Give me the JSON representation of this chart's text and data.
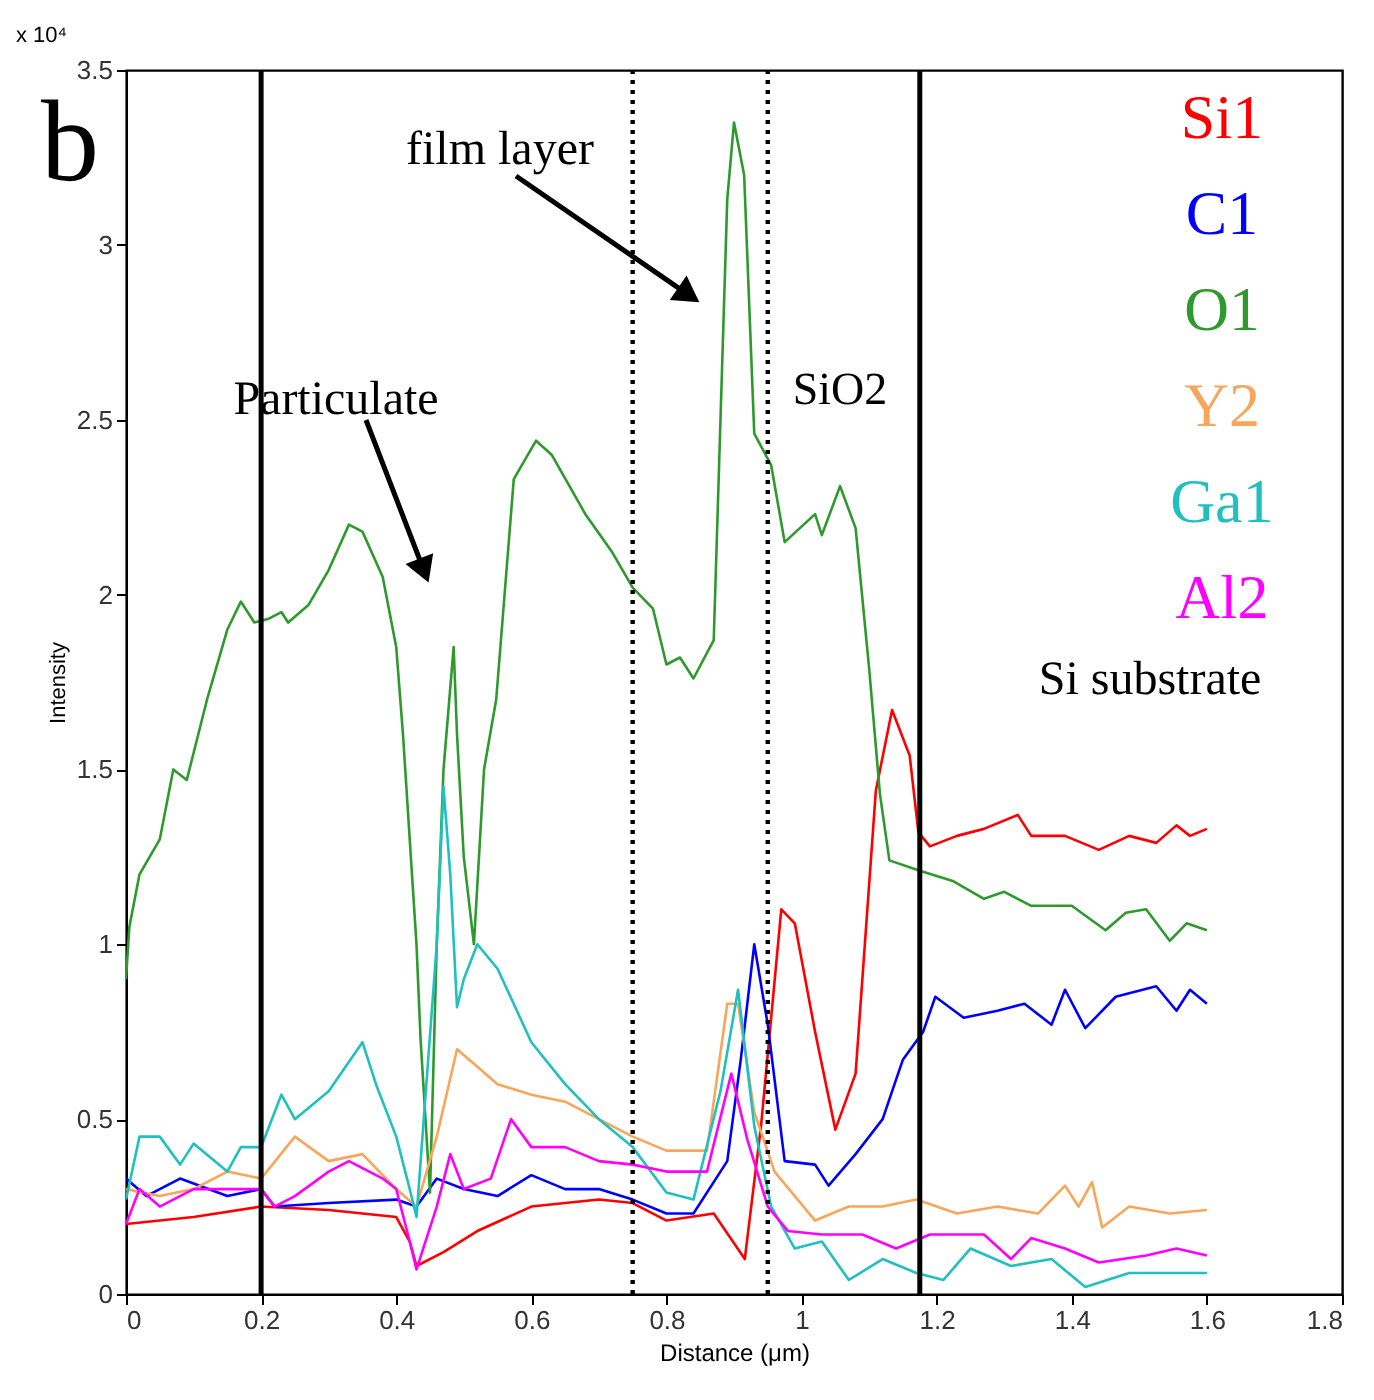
{
  "chart_data": {
    "type": "line",
    "xlabel": "Distance (μm)",
    "ylabel": "Intensity",
    "xlim": [
      0,
      1.8
    ],
    "xticks": [
      0,
      0.2,
      0.4,
      0.6,
      0.8,
      1,
      1.2,
      1.4,
      1.6,
      1.8
    ],
    "ylim": [
      0,
      3.5
    ],
    "yticks": [
      0,
      0.5,
      1,
      1.5,
      2,
      2.5,
      3,
      3.5
    ],
    "grid": false,
    "legend": "top right",
    "annotations": [
      "x 10⁴",
      "b",
      "film layer",
      "Particulate",
      "SiO2",
      "Si substrate"
    ],
    "ref_lines": [
      {
        "axis": "x",
        "value": 0.2,
        "line_style": "solid",
        "color": "#000000"
      },
      {
        "axis": "x",
        "value": 0.75,
        "line_style": "dotted",
        "color": "#000000"
      },
      {
        "axis": "x",
        "value": 0.95,
        "line_style": "dotted",
        "color": "#000000"
      },
      {
        "axis": "x",
        "value": 1.175,
        "line_style": "solid",
        "color": "#000000"
      }
    ],
    "series": [
      {
        "name": "Si1",
        "color": "#ff0000",
        "x": [
          0,
          0.1,
          0.2,
          0.3,
          0.4,
          0.42,
          0.43,
          0.47,
          0.52,
          0.6,
          0.7,
          0.75,
          0.8,
          0.87,
          0.916,
          0.94,
          0.97,
          0.99,
          1.02,
          1.05,
          1.08,
          1.11,
          1.134,
          1.16,
          1.173,
          1.19,
          1.23,
          1.27,
          1.32,
          1.34,
          1.39,
          1.44,
          1.485,
          1.525,
          1.555,
          1.575,
          1.6
        ],
        "values": [
          0.2,
          0.22,
          0.25,
          0.24,
          0.22,
          0.15,
          0.08,
          0.12,
          0.18,
          0.25,
          0.27,
          0.26,
          0.21,
          0.23,
          0.1,
          0.48,
          1.1,
          1.06,
          0.75,
          0.47,
          0.63,
          1.44,
          1.67,
          1.54,
          1.32,
          1.28,
          1.31,
          1.33,
          1.37,
          1.31,
          1.31,
          1.27,
          1.31,
          1.29,
          1.34,
          1.31,
          1.33
        ]
      },
      {
        "name": "C1",
        "color": "#0000ff",
        "x": [
          0,
          0.03,
          0.08,
          0.15,
          0.2,
          0.22,
          0.3,
          0.4,
          0.43,
          0.46,
          0.5,
          0.55,
          0.6,
          0.65,
          0.7,
          0.75,
          0.8,
          0.84,
          0.89,
          0.91,
          0.93,
          0.95,
          0.975,
          1.02,
          1.04,
          1.08,
          1.12,
          1.15,
          1.18,
          1.198,
          1.24,
          1.29,
          1.33,
          1.37,
          1.39,
          1.42,
          1.465,
          1.525,
          1.555,
          1.575,
          1.6
        ],
        "values": [
          0.33,
          0.28,
          0.33,
          0.28,
          0.3,
          0.25,
          0.26,
          0.27,
          0.25,
          0.33,
          0.3,
          0.28,
          0.34,
          0.3,
          0.3,
          0.27,
          0.23,
          0.23,
          0.38,
          0.67,
          1.0,
          0.77,
          0.38,
          0.37,
          0.31,
          0.4,
          0.5,
          0.67,
          0.75,
          0.85,
          0.79,
          0.81,
          0.83,
          0.77,
          0.87,
          0.76,
          0.85,
          0.88,
          0.81,
          0.87,
          0.83
        ]
      },
      {
        "name": "O1",
        "color": "#2e9a2e",
        "x": [
          0,
          0.005,
          0.02,
          0.05,
          0.07,
          0.09,
          0.12,
          0.15,
          0.17,
          0.19,
          0.21,
          0.23,
          0.24,
          0.27,
          0.3,
          0.33,
          0.35,
          0.38,
          0.4,
          0.41,
          0.43,
          0.436,
          0.45,
          0.46,
          0.47,
          0.485,
          0.49,
          0.5,
          0.515,
          0.53,
          0.548,
          0.574,
          0.607,
          0.63,
          0.68,
          0.72,
          0.75,
          0.78,
          0.8,
          0.82,
          0.84,
          0.87,
          0.89,
          0.9,
          0.915,
          0.93,
          0.955,
          0.975,
          1.02,
          1.03,
          1.057,
          1.08,
          1.1,
          1.116,
          1.13,
          1.175,
          1.225,
          1.27,
          1.3,
          1.34,
          1.4,
          1.45,
          1.48,
          1.51,
          1.545,
          1.57,
          1.6
        ],
        "values": [
          0.9,
          1.05,
          1.2,
          1.3,
          1.5,
          1.47,
          1.7,
          1.9,
          1.98,
          1.92,
          1.93,
          1.95,
          1.92,
          1.97,
          2.07,
          2.2,
          2.18,
          2.05,
          1.85,
          1.6,
          1.0,
          0.73,
          0.29,
          1.0,
          1.5,
          1.85,
          1.6,
          1.25,
          1.0,
          1.5,
          1.7,
          2.33,
          2.44,
          2.4,
          2.23,
          2.12,
          2.02,
          1.96,
          1.8,
          1.82,
          1.76,
          1.87,
          3.13,
          3.35,
          3.2,
          2.46,
          2.37,
          2.15,
          2.23,
          2.17,
          2.31,
          2.19,
          1.79,
          1.43,
          1.24,
          1.21,
          1.18,
          1.13,
          1.15,
          1.11,
          1.11,
          1.04,
          1.09,
          1.1,
          1.01,
          1.06,
          1.04
        ]
      },
      {
        "name": "Y2",
        "color": "#f9a55a",
        "x": [
          0,
          0.05,
          0.1,
          0.15,
          0.2,
          0.25,
          0.3,
          0.35,
          0.4,
          0.43,
          0.46,
          0.49,
          0.52,
          0.55,
          0.6,
          0.65,
          0.7,
          0.75,
          0.8,
          0.86,
          0.89,
          0.906,
          0.93,
          0.96,
          1.02,
          1.07,
          1.12,
          1.17,
          1.23,
          1.29,
          1.35,
          1.39,
          1.41,
          1.43,
          1.445,
          1.485,
          1.545,
          1.6
        ],
        "values": [
          0.3,
          0.28,
          0.3,
          0.35,
          0.33,
          0.45,
          0.38,
          0.4,
          0.3,
          0.25,
          0.45,
          0.7,
          0.65,
          0.6,
          0.57,
          0.55,
          0.5,
          0.45,
          0.41,
          0.41,
          0.83,
          0.83,
          0.52,
          0.35,
          0.21,
          0.25,
          0.25,
          0.27,
          0.23,
          0.25,
          0.23,
          0.31,
          0.25,
          0.32,
          0.19,
          0.25,
          0.23,
          0.24
        ]
      },
      {
        "name": "Ga1",
        "color": "#20c0c0",
        "x": [
          0,
          0.02,
          0.05,
          0.08,
          0.1,
          0.15,
          0.17,
          0.2,
          0.23,
          0.25,
          0.3,
          0.35,
          0.37,
          0.4,
          0.42,
          0.43,
          0.46,
          0.47,
          0.48,
          0.49,
          0.5,
          0.52,
          0.55,
          0.6,
          0.65,
          0.7,
          0.75,
          0.8,
          0.84,
          0.88,
          0.906,
          0.93,
          0.955,
          0.99,
          1.03,
          1.07,
          1.12,
          1.17,
          1.21,
          1.25,
          1.31,
          1.37,
          1.42,
          1.485,
          1.545,
          1.6
        ],
        "values": [
          0.27,
          0.45,
          0.45,
          0.37,
          0.43,
          0.35,
          0.42,
          0.42,
          0.57,
          0.5,
          0.58,
          0.72,
          0.6,
          0.45,
          0.3,
          0.22,
          1.0,
          1.45,
          1.2,
          0.82,
          0.9,
          1.0,
          0.93,
          0.72,
          0.6,
          0.5,
          0.42,
          0.29,
          0.27,
          0.58,
          0.87,
          0.48,
          0.25,
          0.13,
          0.15,
          0.04,
          0.1,
          0.06,
          0.04,
          0.13,
          0.08,
          0.1,
          0.02,
          0.06,
          0.06,
          0.06
        ]
      },
      {
        "name": "Al2",
        "color": "#ff00ff",
        "x": [
          0,
          0.02,
          0.05,
          0.1,
          0.15,
          0.2,
          0.22,
          0.25,
          0.3,
          0.33,
          0.38,
          0.4,
          0.42,
          0.43,
          0.46,
          0.48,
          0.5,
          0.54,
          0.57,
          0.6,
          0.65,
          0.7,
          0.75,
          0.8,
          0.86,
          0.896,
          0.92,
          0.95,
          0.98,
          1.03,
          1.09,
          1.14,
          1.19,
          1.27,
          1.31,
          1.34,
          1.39,
          1.44,
          1.51,
          1.555,
          1.6
        ],
        "values": [
          0.2,
          0.3,
          0.25,
          0.3,
          0.3,
          0.3,
          0.25,
          0.28,
          0.35,
          0.38,
          0.33,
          0.3,
          0.15,
          0.07,
          0.25,
          0.4,
          0.3,
          0.33,
          0.5,
          0.42,
          0.42,
          0.38,
          0.37,
          0.35,
          0.35,
          0.63,
          0.44,
          0.25,
          0.18,
          0.17,
          0.17,
          0.13,
          0.17,
          0.17,
          0.1,
          0.16,
          0.13,
          0.09,
          0.11,
          0.13,
          0.11
        ]
      }
    ]
  }
}
